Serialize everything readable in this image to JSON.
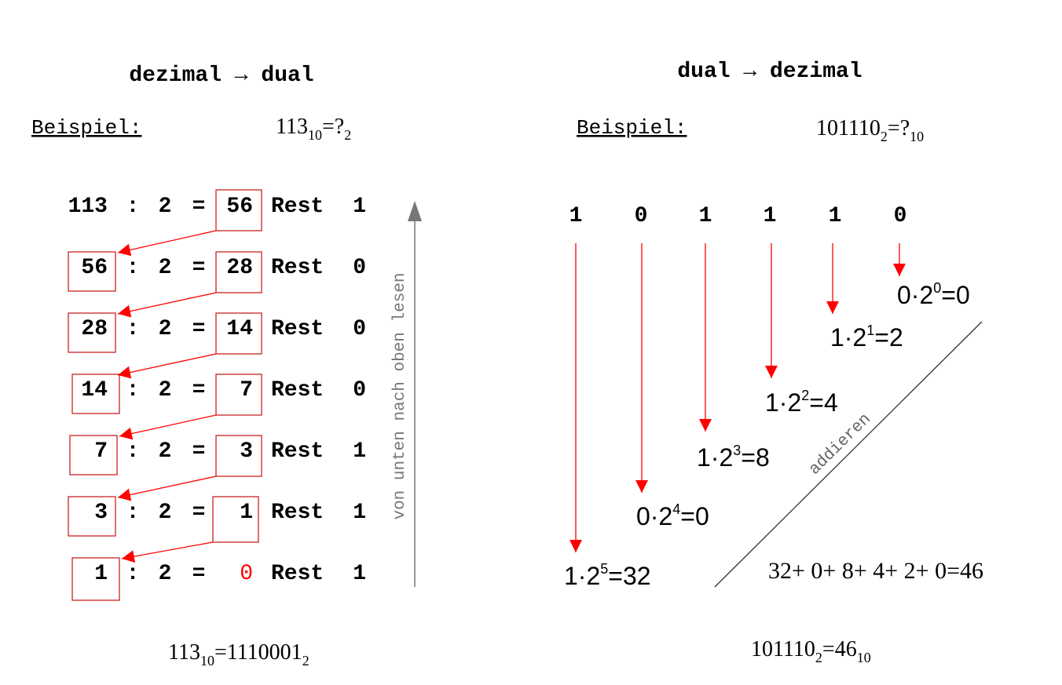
{
  "left": {
    "title": "dezimal → dual",
    "beispiel_label": "Beispiel:",
    "question": {
      "num": "113",
      "sub1": "10",
      "eq": "=?",
      "sub2": "2"
    },
    "rows": [
      {
        "dividend": "113",
        "divisor": "2",
        "quotient": "56",
        "rest": "1"
      },
      {
        "dividend": "56",
        "divisor": "2",
        "quotient": "28",
        "rest": "0"
      },
      {
        "dividend": "28",
        "divisor": "2",
        "quotient": "14",
        "rest": "0"
      },
      {
        "dividend": "14",
        "divisor": "2",
        "quotient": "7",
        "rest": "0"
      },
      {
        "dividend": "7",
        "divisor": "2",
        "quotient": "3",
        "rest": "1"
      },
      {
        "dividend": "3",
        "divisor": "2",
        "quotient": "1",
        "rest": "1"
      },
      {
        "dividend": "1",
        "divisor": "2",
        "quotient": "0",
        "rest": "1"
      }
    ],
    "colon": ":",
    "equals": "=",
    "rest_label": "Rest",
    "read_direction": "von unten nach oben lesen",
    "result": {
      "num": "113",
      "sub1": "10",
      "eq": "=1110001",
      "sub2": "2"
    }
  },
  "right": {
    "title": "dual → dezimal",
    "beispiel_label": "Beispiel:",
    "question": {
      "num": "101110",
      "sub1": "2",
      "eq": "=?",
      "sub2": "10"
    },
    "bits": [
      "1",
      "0",
      "1",
      "1",
      "1",
      "0"
    ],
    "products": [
      {
        "bit": "1",
        "exp": "5",
        "value": "32"
      },
      {
        "bit": "0",
        "exp": "4",
        "value": "0"
      },
      {
        "bit": "1",
        "exp": "3",
        "value": "8"
      },
      {
        "bit": "1",
        "exp": "2",
        "value": "4"
      },
      {
        "bit": "1",
        "exp": "1",
        "value": "2"
      },
      {
        "bit": "0",
        "exp": "0",
        "value": "0"
      }
    ],
    "base": "2",
    "dot": "·",
    "equals": "=",
    "add_label": "addieren",
    "sum": "32+ 0+ 8+ 4+ 2+ 0=46",
    "result": {
      "num": "101110",
      "sub1": "2",
      "eq": "=46",
      "sub2": "10"
    }
  },
  "colors": {
    "accent": "#ff0000",
    "box": "#cc2222",
    "text": "#000000",
    "gray": "#777777"
  }
}
